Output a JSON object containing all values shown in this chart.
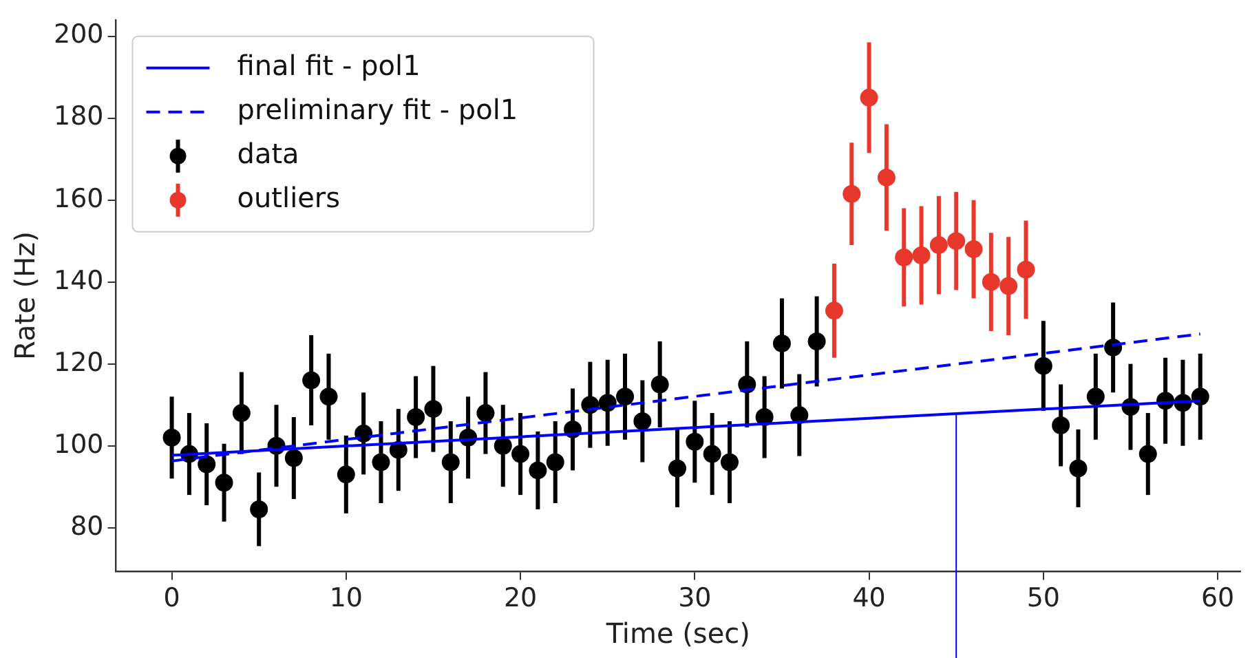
{
  "chart_data": {
    "type": "scatter",
    "xlabel": "Time (sec)",
    "ylabel": "Rate (Hz)",
    "xlim": [
      -3.2,
      61.3
    ],
    "xticks": [
      0,
      10,
      20,
      30,
      40,
      50,
      60
    ],
    "ylim": [
      69.3,
      204
    ],
    "yticks": [
      80,
      100,
      120,
      140,
      160,
      180,
      200
    ],
    "grid": false,
    "legend": "top left",
    "series": [
      {
        "name": "final fit - pol1",
        "type": "line",
        "color": "#0000ff",
        "line_style": "solid",
        "marker": "none",
        "x": [
          0,
          59
        ],
        "values": [
          97.7,
          111
        ]
      },
      {
        "name": "preliminary fit - pol1",
        "type": "line",
        "color": "#0000ff",
        "line_style": "dashed",
        "marker": "none",
        "x": [
          0,
          59
        ],
        "values": [
          96.3,
          127.3
        ]
      },
      {
        "name": "data",
        "color": "#000000",
        "marker": "circle",
        "x": [
          0,
          1,
          2,
          3,
          4,
          5,
          6,
          7,
          8,
          9,
          10,
          11,
          12,
          13,
          14,
          15,
          16,
          17,
          18,
          19,
          20,
          21,
          22,
          23,
          24,
          25,
          26,
          27,
          28,
          29,
          30,
          31,
          32,
          33,
          34,
          35,
          36,
          37,
          50,
          51,
          52,
          53,
          54,
          55,
          56,
          57,
          58,
          59
        ],
        "values": [
          102,
          98,
          95.5,
          91,
          108,
          84.5,
          100,
          97,
          116,
          112,
          93,
          103,
          96,
          99,
          107,
          109,
          96,
          102,
          108,
          100,
          98,
          94,
          96,
          104,
          110,
          110.5,
          112,
          106,
          115,
          94.5,
          101,
          98,
          96,
          115,
          107,
          125,
          107.5,
          125.5,
          119.5,
          105,
          94.5,
          112,
          124,
          109.5,
          98,
          111,
          110.5,
          112
        ],
        "errors": [
          10,
          10,
          10,
          9.5,
          10,
          9,
          10,
          10,
          11,
          10.5,
          9.5,
          10,
          10,
          10,
          10,
          10.5,
          10,
          10,
          10,
          10,
          10,
          9.5,
          10,
          10,
          10.5,
          10.5,
          10.5,
          10,
          10.5,
          9.5,
          10,
          10,
          10,
          10.5,
          10,
          11,
          10,
          11,
          11,
          10,
          9.5,
          10.5,
          11,
          10.5,
          10,
          10.5,
          10.5,
          10.5
        ]
      },
      {
        "name": "outliers",
        "color": "#e8382b",
        "marker": "circle",
        "x": [
          38,
          39,
          40,
          41,
          42,
          43,
          44,
          45,
          46,
          47,
          48,
          49
        ],
        "values": [
          133,
          161.5,
          185,
          165.5,
          146,
          146.5,
          149,
          150,
          148,
          140,
          139,
          143
        ],
        "errors": [
          11.5,
          12.5,
          13.5,
          13,
          12,
          12,
          12,
          12,
          12,
          12,
          12,
          12
        ]
      }
    ],
    "ref_lines": [
      {
        "axis": "x",
        "value": 45,
        "color": "#0000ff"
      }
    ]
  }
}
